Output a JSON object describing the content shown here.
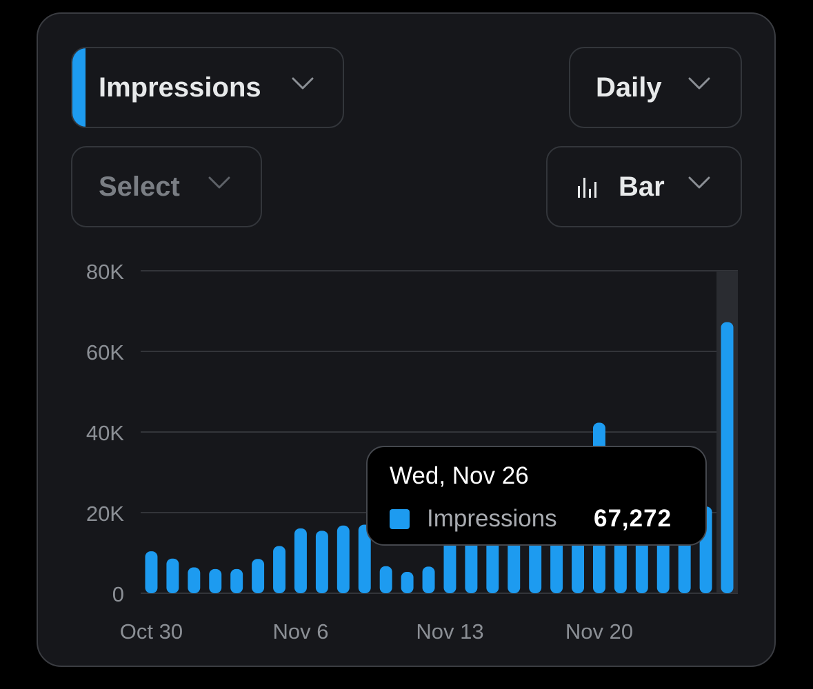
{
  "colors": {
    "accent": "#1d9bf0",
    "card_bg": "#16171b",
    "grid": "#33353a",
    "axis_text": "#8b8f95"
  },
  "controls": {
    "metric_label": "Impressions",
    "period_label": "Daily",
    "compare_label": "Select",
    "chart_type_label": "Bar",
    "chart_type_icon": "bar-chart-icon"
  },
  "tooltip": {
    "date": "Wed, Nov 26",
    "series": "Impressions",
    "value": "67,272"
  },
  "chart_data": {
    "type": "bar",
    "ylim": [
      0,
      80000
    ],
    "yticks": [
      "0",
      "20K",
      "40K",
      "60K",
      "80K"
    ],
    "ytick_values": [
      0,
      20000,
      40000,
      60000,
      80000
    ],
    "xtick_labels": [
      "Oct 30",
      "Nov 6",
      "Nov 13",
      "Nov 20"
    ],
    "xtick_indices": [
      0,
      7,
      14,
      21
    ],
    "categories": [
      "Oct 30",
      "Oct 31",
      "Nov 1",
      "Nov 2",
      "Nov 3",
      "Nov 4",
      "Nov 5",
      "Nov 6",
      "Nov 7",
      "Nov 8",
      "Nov 9",
      "Nov 10",
      "Nov 11",
      "Nov 12",
      "Nov 13",
      "Nov 14",
      "Nov 15",
      "Nov 16",
      "Nov 17",
      "Nov 18",
      "Nov 19",
      "Nov 20",
      "Nov 21",
      "Nov 22",
      "Nov 23",
      "Nov 24",
      "Nov 25",
      "Nov 26"
    ],
    "series": [
      {
        "name": "Impressions",
        "values": [
          10400,
          8600,
          6400,
          6000,
          6000,
          8500,
          11700,
          16100,
          15500,
          16800,
          17000,
          6700,
          5300,
          6600,
          18000,
          18500,
          19000,
          19500,
          19500,
          20000,
          20500,
          42300,
          20000,
          20000,
          20000,
          21000,
          21500,
          67272
        ]
      }
    ],
    "highlight_index": 27
  }
}
